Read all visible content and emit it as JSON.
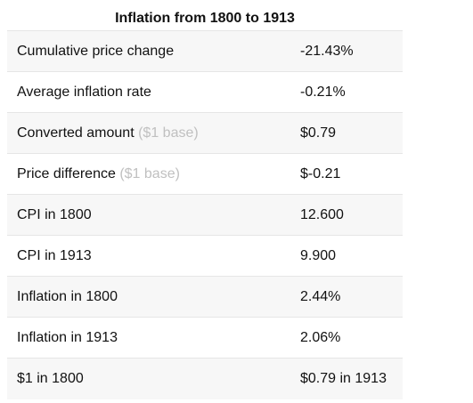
{
  "table": {
    "title": "Inflation from 1800 to 1913",
    "rows": [
      {
        "label": "Cumulative price change",
        "note": "",
        "value": "-21.43%"
      },
      {
        "label": "Average inflation rate",
        "note": "",
        "value": "-0.21%"
      },
      {
        "label": "Converted amount",
        "note": "($1 base)",
        "value": "$0.79"
      },
      {
        "label": "Price difference",
        "note": "($1 base)",
        "value": "$-0.21"
      },
      {
        "label": "CPI in 1800",
        "note": "",
        "value": "12.600"
      },
      {
        "label": "CPI in 1913",
        "note": "",
        "value": "9.900"
      },
      {
        "label": "Inflation in 1800",
        "note": "",
        "value": "2.44%"
      },
      {
        "label": "Inflation in 1913",
        "note": "",
        "value": "2.06%"
      },
      {
        "label": "$1 in 1800",
        "note": "",
        "value": "$0.79 in 1913"
      }
    ]
  },
  "colors": {
    "row_shade": "#f7f7f7",
    "note_text": "#c0c0c0",
    "border": "#e6e6e6"
  }
}
